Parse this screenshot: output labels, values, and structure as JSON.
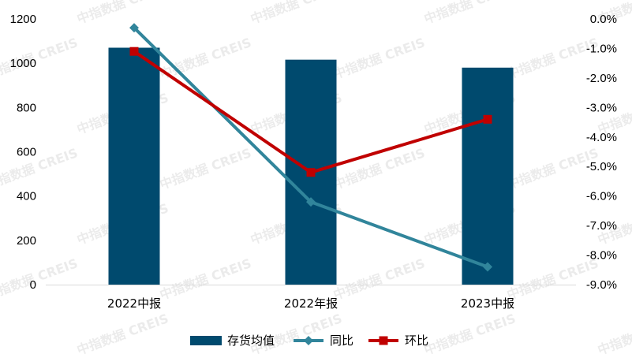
{
  "watermark": "中指数据 CREIS",
  "colors": {
    "bar": "#004A6E",
    "yoy": "#31859B",
    "qoq": "#C00000",
    "axis": "#D9D9D9"
  },
  "chart_data": {
    "type": "bar",
    "categories": [
      "2022中报",
      "2022年报",
      "2023中报"
    ],
    "left_axis": {
      "ylim": [
        0,
        1200
      ],
      "ticks": [
        "0",
        "200",
        "400",
        "600",
        "800",
        "1000",
        "1200"
      ],
      "tick_values": [
        0,
        200,
        400,
        600,
        800,
        1000,
        1200
      ]
    },
    "right_axis": {
      "ylim": [
        -9.0,
        0.0
      ],
      "ticks": [
        "0.0%",
        "-1.0%",
        "-2.0%",
        "-3.0%",
        "-4.0%",
        "-5.0%",
        "-6.0%",
        "-7.0%",
        "-8.0%",
        "-9.0%"
      ],
      "tick_values": [
        0,
        -1,
        -2,
        -3,
        -4,
        -5,
        -6,
        -7,
        -8,
        -9
      ]
    },
    "series": [
      {
        "name": "存货均值",
        "type": "bar",
        "axis": "left",
        "values": [
          1070,
          1016,
          980
        ]
      },
      {
        "name": "同比",
        "type": "line",
        "marker": "diamond",
        "axis": "right",
        "values": [
          -0.3,
          -6.2,
          -8.4
        ]
      },
      {
        "name": "环比",
        "type": "line",
        "marker": "square",
        "axis": "right",
        "values": [
          -1.1,
          -5.2,
          -3.4
        ]
      }
    ],
    "legend": {
      "position": "bottom",
      "entries": [
        "存货均值",
        "同比",
        "环比"
      ]
    },
    "grid": false
  }
}
